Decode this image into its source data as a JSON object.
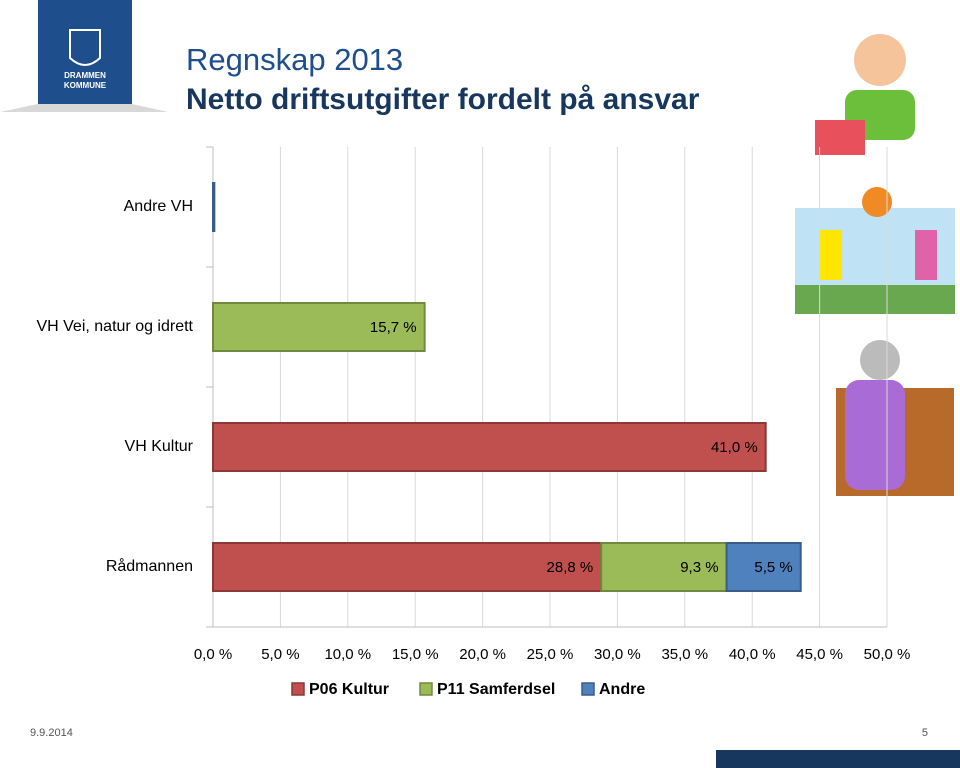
{
  "logo_text": [
    "DRAMMEN",
    "KOMMUNE"
  ],
  "footer": {
    "date": "9.9.2014",
    "page": "5"
  },
  "chart_data": {
    "type": "stacked-bar-horizontal",
    "title": "Regnskap 2013",
    "subtitle": "Netto driftsutgifter fordelt på ansvar",
    "categories": [
      "Andre VH",
      "VH Vei, natur og idrett",
      "VH Kultur",
      "Rådmannen"
    ],
    "series": [
      {
        "name": "P06 Kultur",
        "color": "#c0504d",
        "border": "#8c3836",
        "values": [
          null,
          null,
          41.0,
          28.8
        ],
        "value_labels": [
          null,
          null,
          "41,0 %",
          "28,8 %"
        ]
      },
      {
        "name": "P11 Samferdsel",
        "color": "#9bbb59",
        "border": "#71893f",
        "values": [
          null,
          15.7,
          null,
          9.3
        ],
        "value_labels": [
          null,
          "15,7 %",
          null,
          "9,3 %"
        ]
      },
      {
        "name": "Andre",
        "color": "#4f81bd",
        "border": "#385d8a",
        "values": [
          0.1,
          null,
          null,
          5.5
        ],
        "value_labels": [
          null,
          null,
          null,
          "5,5 %"
        ]
      }
    ],
    "xlim": [
      0,
      50
    ],
    "xticks": [
      {
        "value": 0,
        "label": "0,0 %"
      },
      {
        "value": 5,
        "label": "5,0 %"
      },
      {
        "value": 10,
        "label": "10,0 %"
      },
      {
        "value": 15,
        "label": "15,0 %"
      },
      {
        "value": 20,
        "label": "20,0 %"
      },
      {
        "value": 25,
        "label": "25,0 %"
      },
      {
        "value": 30,
        "label": "30,0 %"
      },
      {
        "value": 35,
        "label": "35,0 %"
      },
      {
        "value": 40,
        "label": "40,0 %"
      },
      {
        "value": 45,
        "label": "45,0 %"
      },
      {
        "value": 50,
        "label": "50,0 %"
      }
    ],
    "grid": true,
    "legend": "bottom"
  }
}
